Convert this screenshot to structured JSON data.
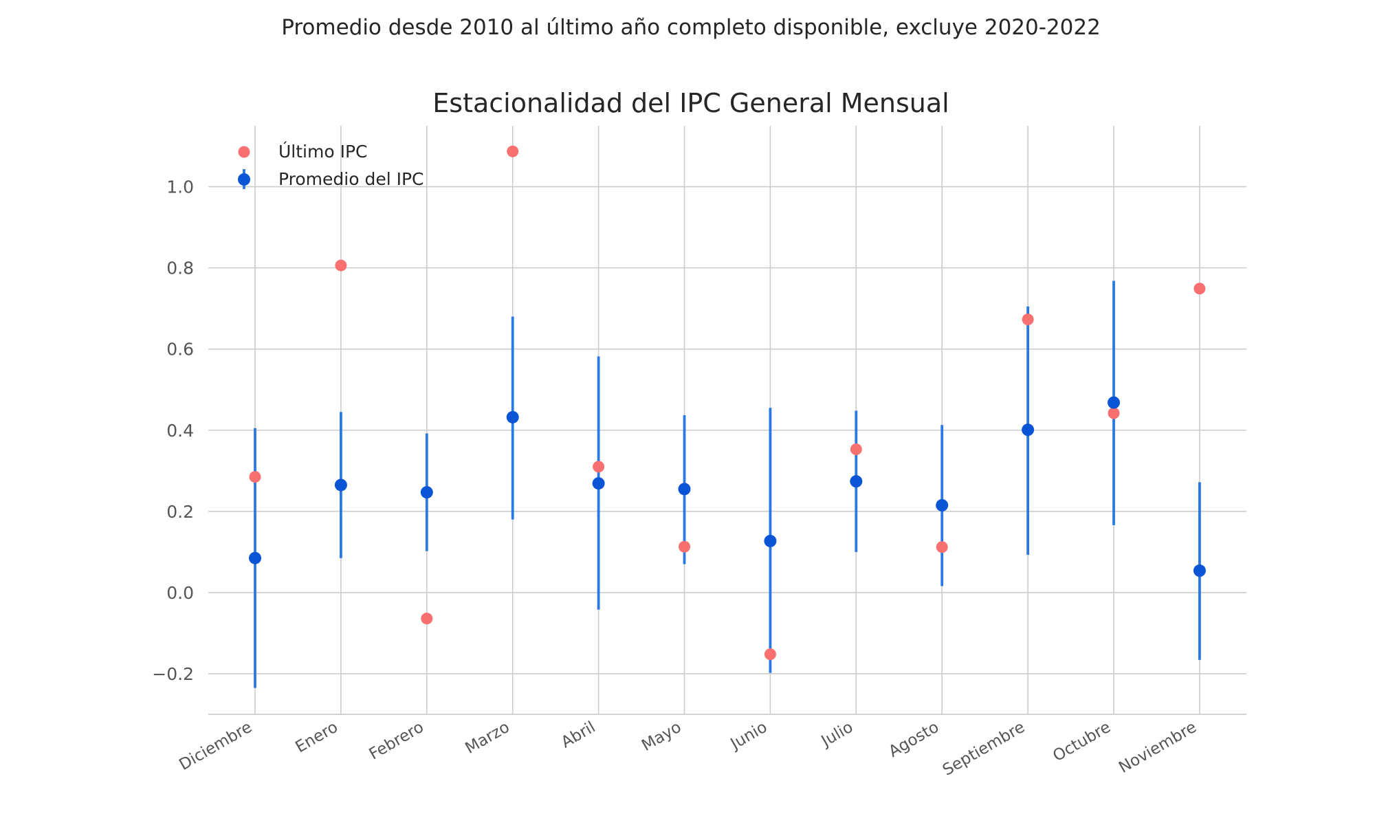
{
  "suptitle": "Promedio desde 2010 al último año completo disponible, excluye 2020-2022",
  "colors": {
    "ultimo": "#f87070",
    "promedio": "#0a55d6",
    "errorbar": "#2a78e4",
    "grid": "#cccccc"
  },
  "chart_data": {
    "type": "scatter",
    "title": "Estacionalidad del IPC General Mensual",
    "xlabel": "",
    "ylabel": "",
    "ylim": [
      -0.3,
      1.15
    ],
    "yticks": [
      -0.2,
      0.0,
      0.2,
      0.4,
      0.6,
      0.8,
      1.0
    ],
    "ytick_labels": [
      "−0.2",
      "0.0",
      "0.2",
      "0.4",
      "0.6",
      "0.8",
      "1.0"
    ],
    "grid": true,
    "legend_position": "top-left",
    "categories": [
      "Diciembre",
      "Enero",
      "Febrero",
      "Marzo",
      "Abril",
      "Mayo",
      "Junio",
      "Julio",
      "Agosto",
      "Septiembre",
      "Octubre",
      "Noviembre"
    ],
    "series": [
      {
        "name": "Último IPC",
        "kind": "points",
        "values": [
          0.285,
          0.806,
          -0.064,
          1.087,
          0.31,
          0.113,
          -0.152,
          0.353,
          0.112,
          0.673,
          0.442,
          0.749
        ]
      },
      {
        "name": "Promedio del IPC",
        "kind": "points_with_errorbars",
        "values": [
          0.085,
          0.265,
          0.247,
          0.432,
          0.269,
          0.255,
          0.127,
          0.274,
          0.215,
          0.401,
          0.468,
          0.054
        ],
        "error_low": [
          -0.235,
          0.085,
          0.102,
          0.18,
          -0.042,
          0.07,
          -0.198,
          0.1,
          0.016,
          0.093,
          0.166,
          -0.166
        ],
        "error_high": [
          0.405,
          0.445,
          0.392,
          0.68,
          0.582,
          0.437,
          0.455,
          0.448,
          0.413,
          0.705,
          0.768,
          0.272
        ]
      }
    ]
  }
}
